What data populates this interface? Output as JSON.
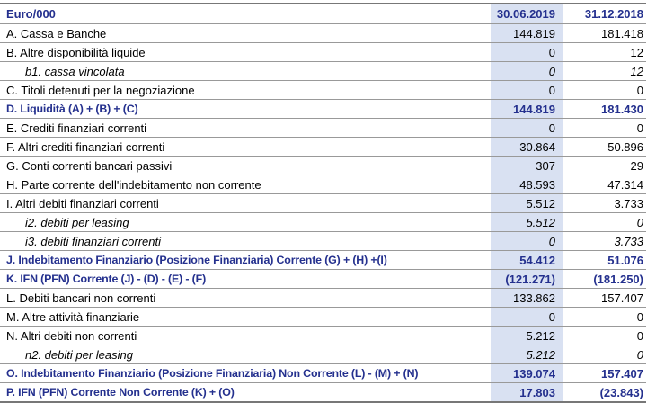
{
  "title": "Euro/000",
  "columns": [
    "30.06.2019",
    "31.12.2018"
  ],
  "colors": {
    "accent_text": "#24308E",
    "highlight_column_bg": "#D9E1F2",
    "row_border": "#999999",
    "outer_border": "#777777"
  },
  "rows": [
    {
      "label": "A. Cassa e Banche",
      "v2019": "144.819",
      "v2018": "181.418",
      "style": "normal"
    },
    {
      "label": "B. Altre disponibilità liquide",
      "v2019": "0",
      "v2018": "12",
      "style": "normal"
    },
    {
      "label": "b1. cassa vincolata",
      "v2019": "0",
      "v2018": "12",
      "style": "sub"
    },
    {
      "label": "C. Titoli detenuti per la negoziazione",
      "v2019": "0",
      "v2018": "0",
      "style": "normal"
    },
    {
      "label": "D. Liquidità (A) + (B) + (C)",
      "v2019": "144.819",
      "v2018": "181.430",
      "style": "total"
    },
    {
      "label": "E. Crediti finanziari correnti",
      "v2019": "0",
      "v2018": "0",
      "style": "normal"
    },
    {
      "label": "F. Altri crediti finanziari correnti",
      "v2019": "30.864",
      "v2018": "50.896",
      "style": "normal"
    },
    {
      "label": "G. Conti correnti bancari passivi",
      "v2019": "307",
      "v2018": "29",
      "style": "normal"
    },
    {
      "label": "H. Parte corrente dell'indebitamento non corrente",
      "v2019": "48.593",
      "v2018": "47.314",
      "style": "normal"
    },
    {
      "label": "I. Altri debiti finanziari correnti",
      "v2019": "5.512",
      "v2018": "3.733",
      "style": "normal"
    },
    {
      "label": "i2. debiti per leasing",
      "v2019": "5.512",
      "v2018": "0",
      "style": "sub"
    },
    {
      "label": "i3. debiti finanziari correnti",
      "v2019": "0",
      "v2018": "3.733",
      "style": "sub"
    },
    {
      "label": "J. Indebitamento Finanziario (Posizione Finanziaria) Corrente (G) + (H) +(I)",
      "v2019": "54.412",
      "v2018": "51.076",
      "style": "total"
    },
    {
      "label": "K. IFN (PFN) Corrente (J) - (D) - (E) - (F)",
      "v2019": "(121.271)",
      "v2018": "(181.250)",
      "style": "total"
    },
    {
      "label": "L. Debiti bancari non correnti",
      "v2019": "133.862",
      "v2018": "157.407",
      "style": "normal"
    },
    {
      "label": "M. Altre attività finanziarie",
      "v2019": "0",
      "v2018": "0",
      "style": "normal"
    },
    {
      "label": "N. Altri debiti non correnti",
      "v2019": "5.212",
      "v2018": "0",
      "style": "normal"
    },
    {
      "label": "n2. debiti per leasing",
      "v2019": "5.212",
      "v2018": "0",
      "style": "sub"
    },
    {
      "label": "O. Indebitamento Finanziario (Posizione Finanziaria) Non Corrente (L) - (M) + (N)",
      "v2019": "139.074",
      "v2018": "157.407",
      "style": "total"
    },
    {
      "label": "P. IFN (PFN) Corrente Non Corrente (K) + (O)",
      "v2019": "17.803",
      "v2018": "(23.843)",
      "style": "total"
    }
  ]
}
